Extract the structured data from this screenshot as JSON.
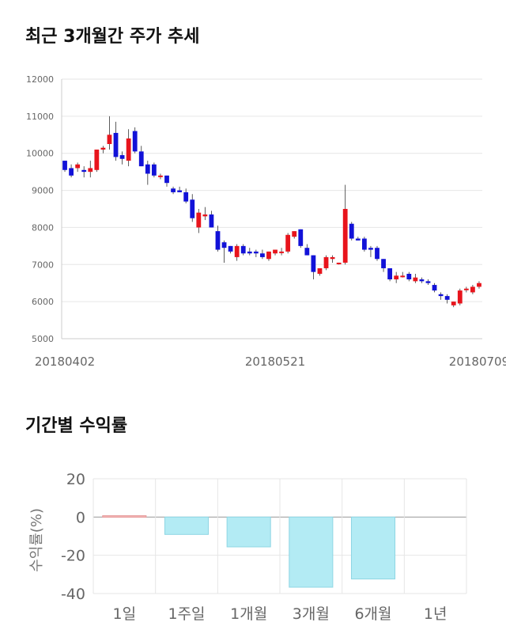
{
  "sections": {
    "price_title": "최근 3개월간 주가 추세",
    "return_title": "기간별 수익률"
  },
  "colors": {
    "up": "#e8141c",
    "down": "#1212d8",
    "return_bar": "#b3ebf4",
    "positive_bar": "#f4b7b7"
  },
  "chart_data": [
    {
      "type": "candlestick",
      "title": "최근 3개월간 주가 추세",
      "yticks": [
        5000,
        6000,
        7000,
        8000,
        9000,
        10000,
        11000,
        12000
      ],
      "ylim": [
        5000,
        12000
      ],
      "xticks": [
        "20180402",
        "20180521",
        "20180709"
      ],
      "grid": true,
      "candles": [
        [
          9800,
          9800,
          9500,
          9550
        ],
        [
          9600,
          9700,
          9350,
          9400
        ],
        [
          9600,
          9750,
          9500,
          9700
        ],
        [
          9550,
          9650,
          9350,
          9500
        ],
        [
          9500,
          9800,
          9350,
          9600
        ],
        [
          9550,
          10100,
          9500,
          10100
        ],
        [
          10100,
          10200,
          10000,
          10150
        ],
        [
          10250,
          11000,
          10100,
          10500
        ],
        [
          10550,
          10850,
          9800,
          9900
        ],
        [
          9950,
          10050,
          9700,
          9850
        ],
        [
          9800,
          10650,
          9650,
          10400
        ],
        [
          10600,
          10700,
          10000,
          10050
        ],
        [
          10050,
          10200,
          9650,
          9650
        ],
        [
          9700,
          9800,
          9150,
          9450
        ],
        [
          9700,
          9750,
          9350,
          9400
        ],
        [
          9400,
          9450,
          9300,
          9400
        ],
        [
          9400,
          9400,
          9100,
          9200
        ],
        [
          9050,
          9100,
          8900,
          8950
        ],
        [
          9000,
          9100,
          8950,
          8950
        ],
        [
          8950,
          9050,
          8650,
          8700
        ],
        [
          8750,
          8900,
          8150,
          8250
        ],
        [
          8000,
          8500,
          7850,
          8400
        ],
        [
          8300,
          8550,
          8200,
          8350
        ],
        [
          8350,
          8450,
          8000,
          8000
        ],
        [
          7900,
          8050,
          7350,
          7400
        ],
        [
          7600,
          7650,
          7050,
          7450
        ],
        [
          7500,
          7500,
          7300,
          7350
        ],
        [
          7200,
          7550,
          7100,
          7500
        ],
        [
          7500,
          7550,
          7250,
          7300
        ],
        [
          7350,
          7450,
          7250,
          7300
        ],
        [
          7350,
          7400,
          7200,
          7300
        ],
        [
          7300,
          7400,
          7150,
          7200
        ],
        [
          7150,
          7350,
          7100,
          7350
        ],
        [
          7300,
          7400,
          7250,
          7400
        ],
        [
          7350,
          7450,
          7250,
          7350
        ],
        [
          7350,
          7850,
          7300,
          7800
        ],
        [
          7750,
          7900,
          7700,
          7900
        ],
        [
          7950,
          7950,
          7450,
          7500
        ],
        [
          7450,
          7550,
          7250,
          7250
        ],
        [
          7250,
          7250,
          6600,
          6800
        ],
        [
          6750,
          6900,
          6700,
          6900
        ],
        [
          6900,
          7250,
          6850,
          7200
        ],
        [
          7150,
          7250,
          7050,
          7200
        ],
        [
          7050,
          7050,
          7000,
          7050
        ],
        [
          7050,
          9150,
          7000,
          8500
        ],
        [
          8100,
          8150,
          7650,
          7700
        ],
        [
          7700,
          7750,
          7650,
          7650
        ],
        [
          7700,
          7750,
          7350,
          7400
        ],
        [
          7450,
          7500,
          7200,
          7400
        ],
        [
          7450,
          7500,
          7100,
          7150
        ],
        [
          7150,
          7150,
          6800,
          6900
        ],
        [
          6900,
          6900,
          6550,
          6600
        ],
        [
          6600,
          6800,
          6500,
          6700
        ],
        [
          6700,
          6800,
          6650,
          6700
        ],
        [
          6750,
          6800,
          6550,
          6600
        ],
        [
          6550,
          6750,
          6500,
          6650
        ],
        [
          6600,
          6650,
          6500,
          6550
        ],
        [
          6550,
          6600,
          6450,
          6500
        ],
        [
          6450,
          6500,
          6250,
          6300
        ],
        [
          6200,
          6250,
          6050,
          6150
        ],
        [
          6150,
          6200,
          5950,
          6050
        ],
        [
          5900,
          6000,
          5850,
          6000
        ],
        [
          5950,
          6350,
          5900,
          6300
        ],
        [
          6350,
          6400,
          6250,
          6350
        ],
        [
          6250,
          6450,
          6200,
          6400
        ],
        [
          6400,
          6550,
          6350,
          6500
        ]
      ]
    },
    {
      "type": "bar",
      "title": "기간별 수익률",
      "ylabel": "수익률(%)",
      "categories": [
        "1일",
        "1주일",
        "1개월",
        "3개월",
        "6개월",
        "1년"
      ],
      "values": [
        0.7,
        -9.1,
        -15.6,
        -36.7,
        -32.4,
        null
      ],
      "yticks": [
        20,
        0,
        -20,
        -40
      ],
      "ylim": [
        -40,
        20
      ],
      "grid": true
    }
  ]
}
